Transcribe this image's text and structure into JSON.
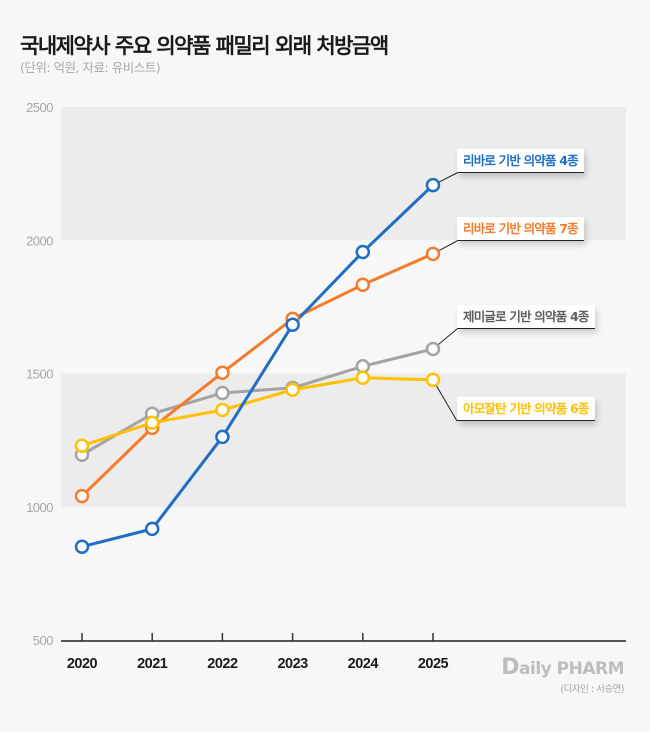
{
  "header": {
    "title": "국내제약사 주요 의약품 패밀리 외래 처방금액",
    "subtitle": "(단위: 억원, 자료: 유비스트)"
  },
  "footer": {
    "logo_first": "D",
    "logo_rest": "aily PHARM",
    "credit": "(디자인 : 서승연)"
  },
  "chart_data": {
    "type": "line",
    "title": "국내제약사 주요 의약품 패밀리 외래 처방금액",
    "subtitle": "(단위: 억원, 자료: 유비스트)",
    "xlabel": "",
    "ylabel": "",
    "x": [
      "2020",
      "2021",
      "2022",
      "2023",
      "2024",
      "2025"
    ],
    "ylim": [
      500,
      2500
    ],
    "yticks": [
      500,
      1000,
      1500,
      2000,
      2500
    ],
    "grid": "alternating horizontal bands",
    "legend": "direct labels at right end of lines",
    "series": [
      {
        "name": "리바로 기반 의약품 4종",
        "color": "#1f6ec4",
        "values": [
          850,
          917,
          1262,
          1683,
          1956,
          2207
        ]
      },
      {
        "name": "리바로 기반 의약품 7종",
        "color": "#f47c2c",
        "values": [
          1040,
          1296,
          1503,
          1705,
          1833,
          1949
        ]
      },
      {
        "name": "제미글로 기반 의약품 4종",
        "color": "#a3a3a3",
        "values": [
          1195,
          1349,
          1427,
          1446,
          1527,
          1592
        ]
      },
      {
        "name": "아모잘탄 기반 의약품 6종",
        "color": "#ffc000",
        "values": [
          1229,
          1315,
          1363,
          1439,
          1484,
          1476
        ]
      }
    ],
    "label_text_colors": [
      "#1f6ec4",
      "#f47c2c",
      "#5e5e5e",
      "#ffc000"
    ]
  }
}
